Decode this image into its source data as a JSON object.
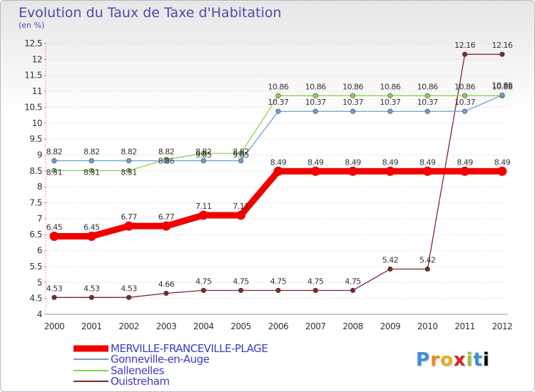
{
  "chart_data": {
    "type": "line",
    "title": "Evolution du Taux de Taxe d'Habitation",
    "subtitle": "(en %)",
    "x": [
      "2000",
      "2001",
      "2002",
      "2003",
      "2004",
      "2005",
      "2006",
      "2007",
      "2008",
      "2009",
      "2010",
      "2011",
      "2012"
    ],
    "y_ticks": [
      "4",
      "4.5",
      "5",
      "5.5",
      "6",
      "6.5",
      "7",
      "7.5",
      "8",
      "8.5",
      "9",
      "9.5",
      "10",
      "10.5",
      "11",
      "11.5",
      "12",
      "12.5"
    ],
    "ylim": [
      4,
      12.5
    ],
    "grid": "dotted horizontal",
    "legend_position": "bottom-left",
    "series": [
      {
        "name": "MERVILLE-FRANCEVILLE-PLAGE",
        "color": "#f00000",
        "values": [
          6.45,
          6.45,
          6.77,
          6.77,
          7.11,
          7.11,
          8.49,
          8.49,
          8.49,
          8.49,
          8.49,
          8.49,
          8.49
        ],
        "labels": [
          "6.45",
          "6.45",
          "6.77",
          "6.77",
          "7.11",
          "7.11",
          "8.49",
          "8.49",
          "8.49",
          "8.49",
          "8.49",
          "8.49",
          "8.49"
        ]
      },
      {
        "name": "Gonneville-en-Auge",
        "color": "#6aa0d2",
        "values": [
          8.82,
          8.82,
          8.82,
          8.82,
          8.82,
          8.82,
          10.37,
          10.37,
          10.37,
          10.37,
          10.37,
          10.37,
          10.88
        ],
        "labels": [
          "8.82",
          "8.82",
          "8.82",
          "8.82",
          "8.82",
          "8.82",
          "10.37",
          "10.37",
          "10.37",
          "10.37",
          "10.37",
          "10.37",
          "10.88"
        ]
      },
      {
        "name": "Sallenelles",
        "color": "#90d050",
        "values": [
          8.51,
          8.51,
          8.51,
          8.86,
          9.05,
          9.05,
          10.86,
          10.86,
          10.86,
          10.86,
          10.86,
          10.86,
          10.86
        ],
        "labels": [
          "8.51",
          "8.51",
          "8.51",
          "8.86",
          "9.05",
          "9.05",
          "10.86",
          "10.86",
          "10.86",
          "10.86",
          "10.86",
          "10.86",
          "10.86"
        ]
      },
      {
        "name": "Ouistreham",
        "color": "#7a2a2a",
        "values": [
          4.53,
          4.53,
          4.53,
          4.66,
          4.75,
          4.75,
          4.75,
          4.75,
          4.75,
          5.42,
          5.42,
          12.16,
          12.16
        ],
        "labels": [
          "4.53",
          "4.53",
          "4.53",
          "4.66",
          "4.75",
          "4.75",
          "4.75",
          "4.75",
          "4.75",
          "5.42",
          "5.42",
          "12.16",
          "12.16"
        ]
      }
    ]
  },
  "logo": [
    "P",
    "r",
    "o",
    "x",
    "i",
    "t",
    "i"
  ]
}
